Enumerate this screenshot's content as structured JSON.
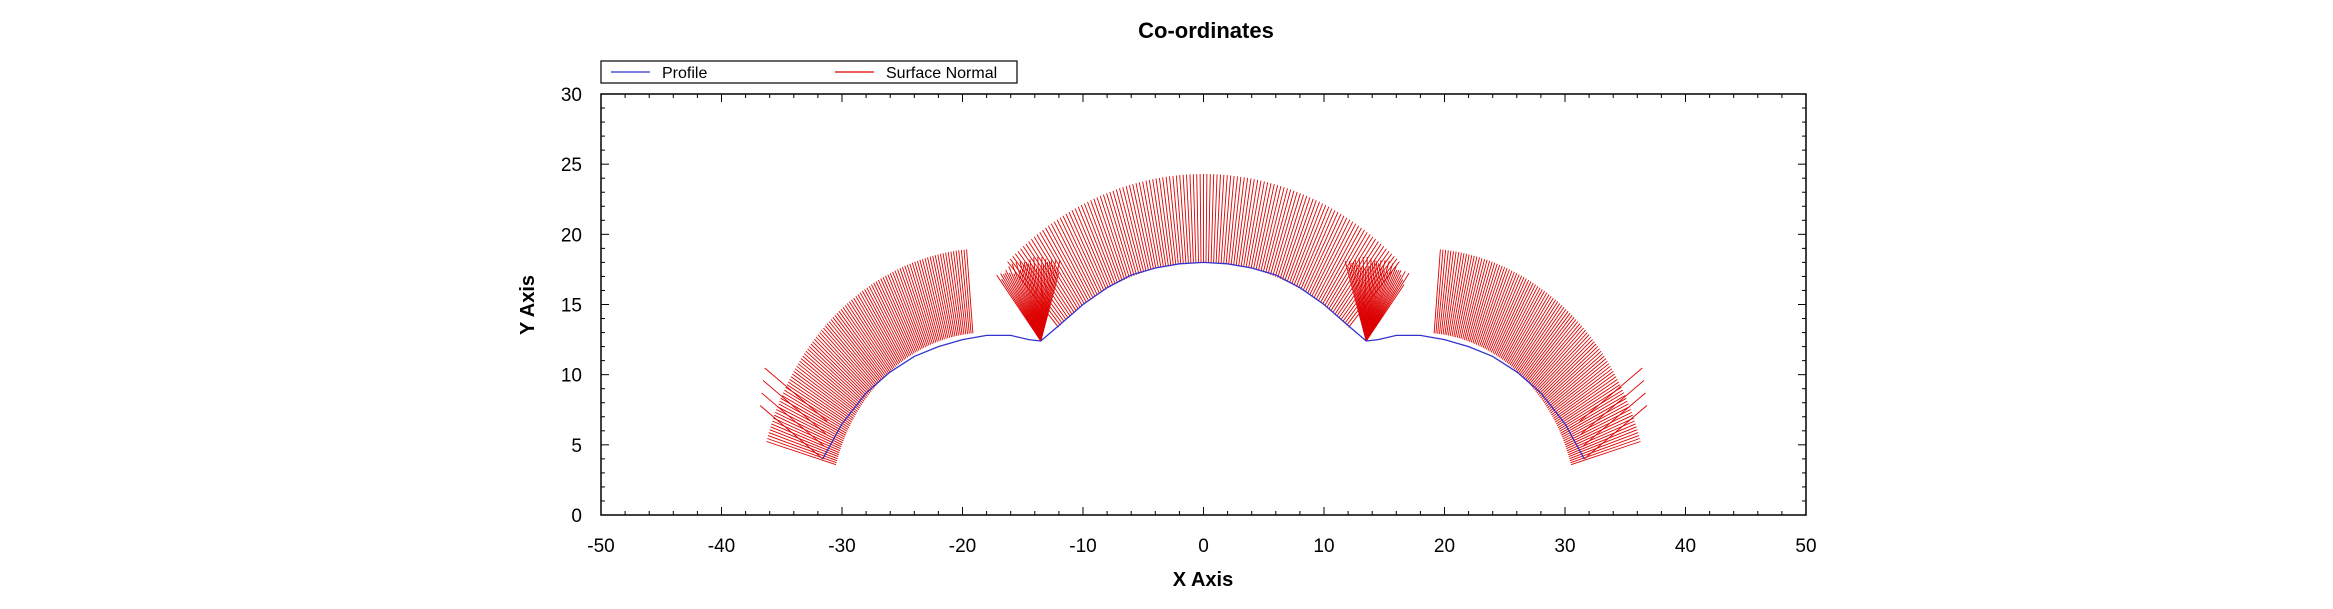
{
  "chart_data": {
    "type": "line",
    "title": "Co-ordinates",
    "xlabel": "X Axis",
    "ylabel": "Y Axis",
    "xlim": [
      -50,
      50
    ],
    "ylim": [
      0,
      30
    ],
    "x_ticks": [
      -50,
      -40,
      -30,
      -20,
      -10,
      0,
      10,
      20,
      30,
      40,
      50
    ],
    "y_ticks": [
      0,
      5,
      10,
      15,
      20,
      25,
      30
    ],
    "x_tick_labels": [
      "-50",
      "-40",
      "-30",
      "-20",
      "-10",
      "0",
      "10",
      "20",
      "30",
      "40",
      "50"
    ],
    "y_tick_labels": [
      "0",
      "5",
      "10",
      "15",
      "20",
      "25",
      "30"
    ],
    "grid": false,
    "legend_position": "top-left",
    "series": [
      {
        "name": "Profile",
        "color": "#3333cc",
        "points": [
          [
            -31.6,
            4.0
          ],
          [
            -30.0,
            6.5
          ],
          [
            -28.0,
            8.7
          ],
          [
            -26.0,
            10.2
          ],
          [
            -24.0,
            11.3
          ],
          [
            -22.0,
            12.0
          ],
          [
            -20.0,
            12.5
          ],
          [
            -18.0,
            12.8
          ],
          [
            -16.0,
            12.8
          ],
          [
            -14.5,
            12.5
          ],
          [
            -13.5,
            12.4
          ],
          [
            -12.0,
            13.5
          ],
          [
            -10.0,
            15.0
          ],
          [
            -8.0,
            16.2
          ],
          [
            -6.0,
            17.1
          ],
          [
            -4.0,
            17.6
          ],
          [
            -2.0,
            17.9
          ],
          [
            0.0,
            18.0
          ],
          [
            2.0,
            17.9
          ],
          [
            4.0,
            17.6
          ],
          [
            6.0,
            17.1
          ],
          [
            8.0,
            16.2
          ],
          [
            10.0,
            15.0
          ],
          [
            12.0,
            13.5
          ],
          [
            13.5,
            12.4
          ],
          [
            14.5,
            12.5
          ],
          [
            16.0,
            12.8
          ],
          [
            18.0,
            12.8
          ],
          [
            20.0,
            12.5
          ],
          [
            22.0,
            12.0
          ],
          [
            24.0,
            11.3
          ],
          [
            26.0,
            10.2
          ],
          [
            28.0,
            8.7
          ],
          [
            30.0,
            6.5
          ],
          [
            31.6,
            4.0
          ]
        ]
      },
      {
        "name": "Surface Normal",
        "color": "#dd0000",
        "description_of_geometry": [
          {
            "arc": "left",
            "center": [
              -18,
              0
            ],
            "inner_radius": 13,
            "outer_radius": 19,
            "from_deg": 164,
            "to_deg": 95
          },
          {
            "arc": "center",
            "center": [
              0,
              0
            ],
            "inner_radius": 18,
            "outer_radius": 24.3,
            "from_deg": 132,
            "to_deg": 48
          },
          {
            "arc": "right",
            "center": [
              18,
              0
            ],
            "inner_radius": 13,
            "outer_radius": 19,
            "from_deg": 85,
            "to_deg": 16
          },
          {
            "fan": "left",
            "apex": [
              -13.5,
              12.4
            ],
            "length": 6,
            "from_deg": 73,
            "to_deg": 128
          },
          {
            "fan": "right",
            "apex": [
              13.5,
              12.4
            ],
            "length": 6,
            "from_deg": 52,
            "to_deg": 107
          },
          {
            "tail": "left",
            "start": [
              -31.6,
              4.0
            ],
            "end": [
              -36.8,
              7.8
            ],
            "count": 4
          },
          {
            "tail": "right",
            "start": [
              31.6,
              4.0
            ],
            "end": [
              36.8,
              7.8
            ],
            "count": 4
          }
        ]
      }
    ]
  }
}
